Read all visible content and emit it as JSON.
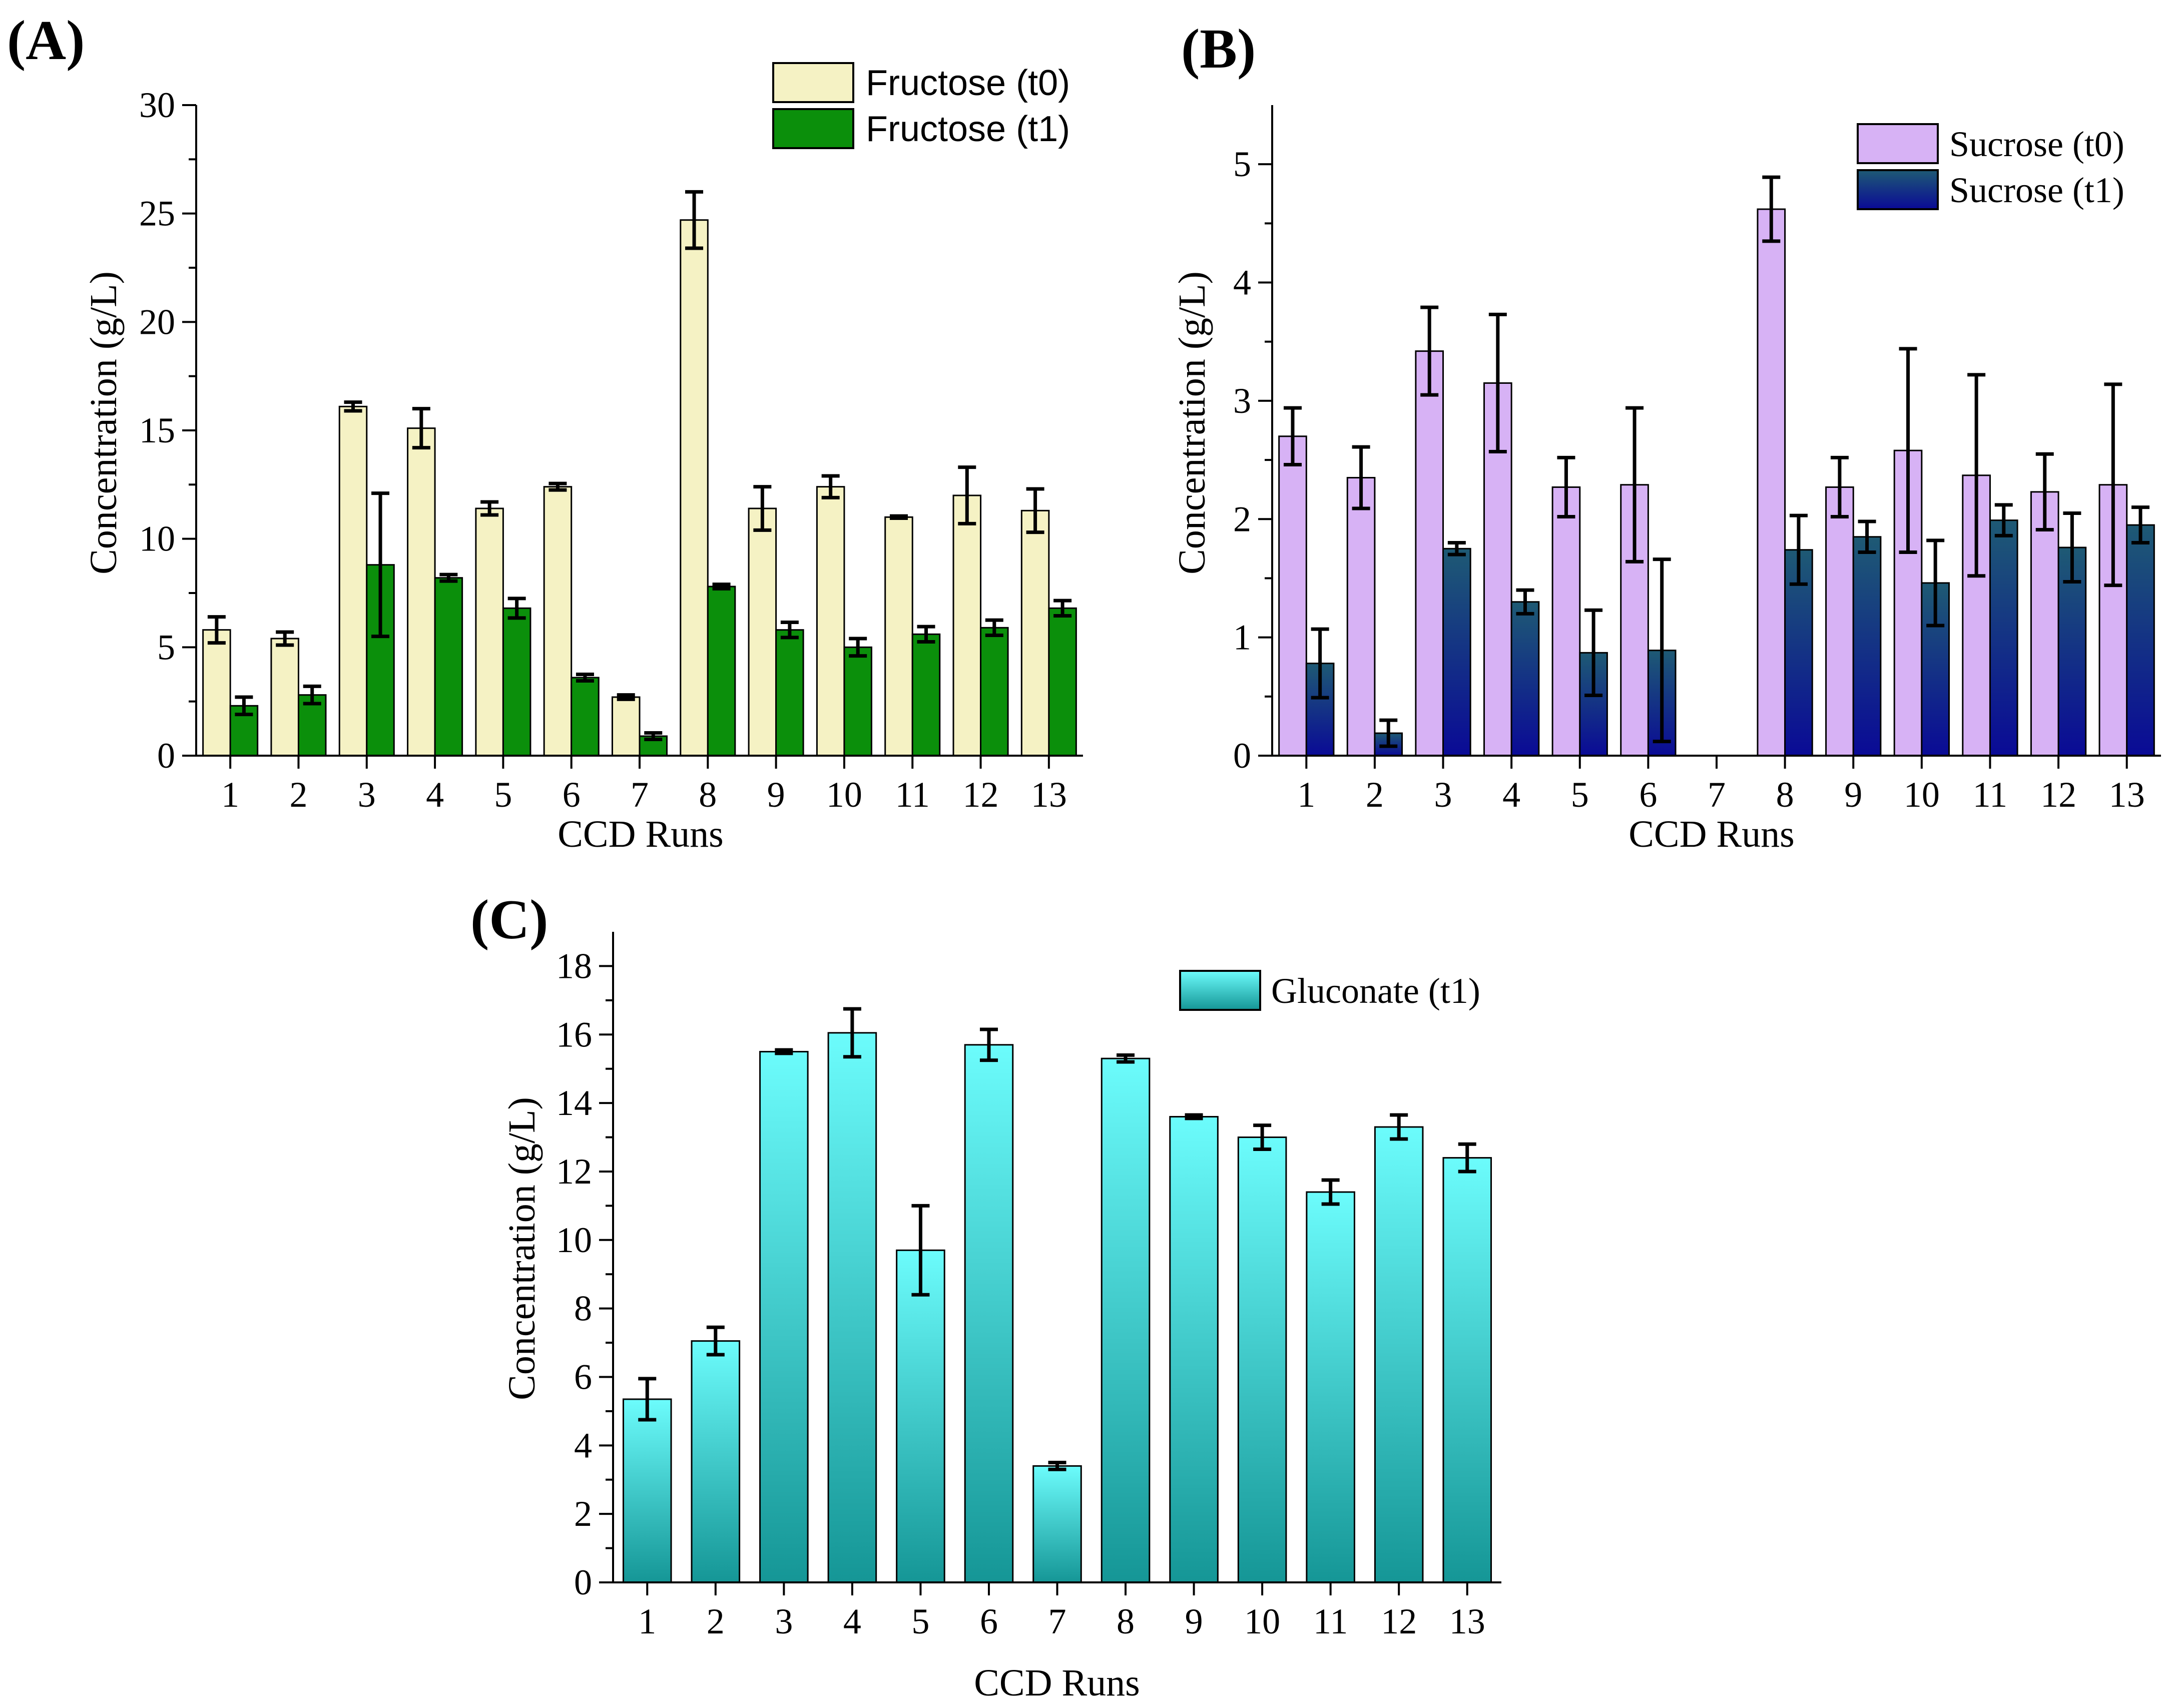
{
  "colors": {
    "fructose_t0": "#f5f2c4",
    "fructose_t1": "#0b8f0b",
    "sucrose_t0": "#d7b2f5",
    "sucrose_t1_top": "#1e5a74",
    "sucrose_t1_bottom": "#0a0a96",
    "gluconate_top": "#6cfcfc",
    "gluconate_bottom": "#159696"
  },
  "chart_data": [
    {
      "panel": "(A)",
      "type": "bar",
      "xlabel": "CCD Runs",
      "ylabel": "Concentration (g/L)",
      "ylim": [
        0,
        30
      ],
      "yticks": [
        "0",
        "5",
        "10",
        "15",
        "20",
        "25",
        "30"
      ],
      "categories": [
        "1",
        "2",
        "3",
        "4",
        "5",
        "6",
        "7",
        "8",
        "9",
        "10",
        "11",
        "12",
        "13"
      ],
      "legend_position": "top-right",
      "series": [
        {
          "name": "Fructose (t0)",
          "values": [
            5.8,
            5.4,
            16.1,
            15.1,
            11.4,
            12.4,
            2.7,
            24.7,
            11.4,
            12.4,
            11.0,
            12.0,
            11.3
          ],
          "errors": [
            0.6,
            0.3,
            0.2,
            0.9,
            0.3,
            0.15,
            0.1,
            1.3,
            1.0,
            0.5,
            0.05,
            1.3,
            1.0
          ]
        },
        {
          "name": "Fructose (t1)",
          "values": [
            2.3,
            2.8,
            8.8,
            8.2,
            6.8,
            3.6,
            0.9,
            7.8,
            5.8,
            5.0,
            5.6,
            5.9,
            6.8
          ],
          "errors": [
            0.4,
            0.4,
            3.3,
            0.15,
            0.45,
            0.15,
            0.15,
            0.1,
            0.35,
            0.4,
            0.35,
            0.35,
            0.35
          ]
        }
      ]
    },
    {
      "panel": "(B)",
      "type": "bar",
      "xlabel": "CCD Runs",
      "ylabel": "Concentration (g/L)",
      "ylim": [
        0,
        5.5
      ],
      "yticks": [
        "0",
        "1",
        "2",
        "3",
        "4",
        "5"
      ],
      "categories": [
        "1",
        "2",
        "3",
        "4",
        "5",
        "6",
        "7",
        "8",
        "9",
        "10",
        "11",
        "12",
        "13"
      ],
      "legend_position": "top-right",
      "series": [
        {
          "name": "Sucrose (t0)",
          "values": [
            2.7,
            2.35,
            3.42,
            3.15,
            2.27,
            2.29,
            0,
            4.62,
            2.27,
            2.58,
            2.37,
            2.23,
            2.29
          ],
          "errors": [
            0.24,
            0.26,
            0.37,
            0.58,
            0.25,
            0.65,
            0,
            0.27,
            0.25,
            0.86,
            0.85,
            0.32,
            0.85
          ]
        },
        {
          "name": "Sucrose (t1)",
          "values": [
            0.78,
            0.19,
            1.75,
            1.3,
            0.87,
            0.89,
            0,
            1.74,
            1.85,
            1.46,
            1.99,
            1.76,
            1.95
          ],
          "errors": [
            0.29,
            0.11,
            0.05,
            0.1,
            0.36,
            0.77,
            0,
            0.29,
            0.13,
            0.36,
            0.13,
            0.29,
            0.15
          ]
        }
      ]
    },
    {
      "panel": "(C)",
      "type": "bar",
      "xlabel": "CCD Runs",
      "ylabel": "Concentration (g/L)",
      "ylim": [
        0,
        19
      ],
      "yticks": [
        "0",
        "2",
        "4",
        "6",
        "8",
        "10",
        "12",
        "14",
        "16",
        "18"
      ],
      "categories": [
        "1",
        "2",
        "3",
        "4",
        "5",
        "6",
        "7",
        "8",
        "9",
        "10",
        "11",
        "12",
        "13"
      ],
      "legend_position": "top-right",
      "series": [
        {
          "name": "Gluconate (t1)",
          "values": [
            5.35,
            7.05,
            15.5,
            16.05,
            9.7,
            15.7,
            3.4,
            15.3,
            13.6,
            13.0,
            11.4,
            13.3,
            12.4
          ],
          "errors": [
            0.6,
            0.4,
            0.05,
            0.7,
            1.3,
            0.45,
            0.1,
            0.1,
            0.05,
            0.35,
            0.35,
            0.35,
            0.4
          ]
        }
      ]
    }
  ]
}
